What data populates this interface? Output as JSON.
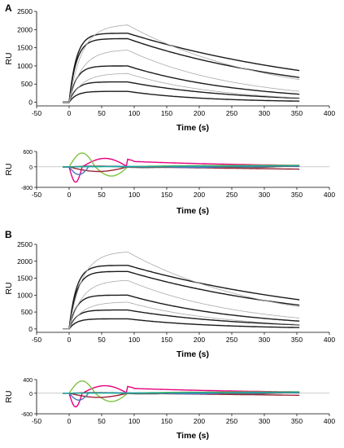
{
  "panels": [
    {
      "letter": "A"
    },
    {
      "letter": "B"
    }
  ],
  "chart_data": [
    {
      "panel": "A",
      "type": "line",
      "xlabel": "Time (s)",
      "ylabel": "RU",
      "xlim": [
        -50,
        400
      ],
      "ylim": [
        -100,
        2500
      ],
      "xticks": [
        -50,
        0,
        50,
        100,
        150,
        200,
        250,
        300,
        350,
        400
      ],
      "yticks": [
        0,
        500,
        1000,
        1500,
        2000,
        2500
      ],
      "grid": false,
      "series": [
        {
          "style": "fit",
          "color": "#1a1a1a",
          "plateau": 1900,
          "end": 870
        },
        {
          "style": "fit",
          "color": "#1a1a1a",
          "plateau": 1750,
          "end": 680
        },
        {
          "style": "fit",
          "color": "#1a1a1a",
          "plateau": 1000,
          "end": 220
        },
        {
          "style": "fit",
          "color": "#1a1a1a",
          "plateau": 560,
          "end": 110
        },
        {
          "style": "fit",
          "color": "#1a1a1a",
          "plateau": 300,
          "end": 30
        },
        {
          "style": "data",
          "color": "#aaaaaa",
          "plateau": 2150,
          "end": 620
        },
        {
          "style": "data",
          "color": "#aaaaaa",
          "plateau": 1450,
          "end": 300
        },
        {
          "style": "data",
          "color": "#aaaaaa",
          "plateau": 800,
          "end": 120
        }
      ]
    },
    {
      "panel": "A",
      "type": "line",
      "subtype": "residuals",
      "xlabel": "Time (s)",
      "ylabel": "RU",
      "xlim": [
        -50,
        400
      ],
      "ylim": [
        -800,
        600
      ],
      "xticks": [
        -50,
        0,
        50,
        100,
        150,
        200,
        250,
        300,
        350,
        400
      ],
      "yticks": [
        600,
        0,
        -800
      ],
      "grid": false,
      "series": [
        {
          "color": "#e6007e"
        },
        {
          "color": "#7dc242"
        },
        {
          "color": "#9b2335"
        },
        {
          "color": "#4b77be"
        },
        {
          "color": "#666666"
        },
        {
          "color": "#1aa9a0"
        }
      ]
    },
    {
      "panel": "B",
      "type": "line",
      "xlabel": "Time (s)",
      "ylabel": "RU",
      "xlim": [
        -50,
        400
      ],
      "ylim": [
        -100,
        2500
      ],
      "xticks": [
        -50,
        0,
        50,
        100,
        150,
        200,
        250,
        300,
        350,
        400
      ],
      "yticks": [
        0,
        500,
        1000,
        1500,
        2000,
        2500
      ],
      "grid": false,
      "series": [
        {
          "style": "fit",
          "color": "#1a1a1a",
          "plateau": 1880,
          "end": 860
        },
        {
          "style": "fit",
          "color": "#1a1a1a",
          "plateau": 1700,
          "end": 700
        },
        {
          "style": "fit",
          "color": "#1a1a1a",
          "plateau": 1000,
          "end": 230
        },
        {
          "style": "fit",
          "color": "#1a1a1a",
          "plateau": 560,
          "end": 120
        },
        {
          "style": "fit",
          "color": "#1a1a1a",
          "plateau": 300,
          "end": 40
        },
        {
          "style": "data",
          "color": "#aaaaaa",
          "plateau": 2300,
          "end": 650
        },
        {
          "style": "data",
          "color": "#aaaaaa",
          "plateau": 1450,
          "end": 320
        },
        {
          "style": "data",
          "color": "#aaaaaa",
          "plateau": 800,
          "end": 130
        }
      ]
    },
    {
      "panel": "B",
      "type": "line",
      "subtype": "residuals",
      "xlabel": "Time (s)",
      "ylabel": "RU",
      "xlim": [
        -50,
        400
      ],
      "ylim": [
        -600,
        400
      ],
      "xticks": [
        -50,
        0,
        50,
        100,
        150,
        200,
        250,
        300,
        350,
        400
      ],
      "yticks": [
        400,
        0,
        -600
      ],
      "grid": false,
      "series": [
        {
          "color": "#e6007e"
        },
        {
          "color": "#7dc242"
        },
        {
          "color": "#9b2335"
        },
        {
          "color": "#4b77be"
        },
        {
          "color": "#666666"
        },
        {
          "color": "#1aa9a0"
        }
      ]
    }
  ]
}
